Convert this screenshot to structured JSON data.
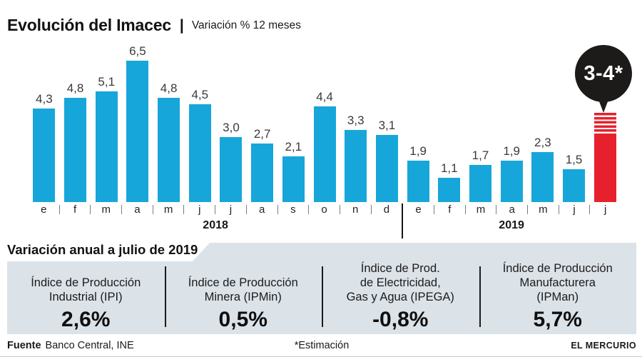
{
  "header": {
    "title": "Evolución del Imacec",
    "separator": "|",
    "subtitle": "Variación % 12 meses"
  },
  "chart_data": {
    "type": "bar",
    "title": "Evolución del Imacec",
    "subtitle": "Variación % 12 meses",
    "ylabel": "Variación % 12 meses",
    "ylim": [
      0,
      7
    ],
    "gridlines": false,
    "bar_color": "#17a6da",
    "estimate_color": "#e6212d",
    "callout": {
      "text": "3-4*",
      "bg": "#1d1b1a",
      "text_color": "#ffffff"
    },
    "year_groups": [
      {
        "label": "2018",
        "count": 12
      },
      {
        "label": "2019",
        "count": 7
      }
    ],
    "points": [
      {
        "month": "e",
        "year": 2018,
        "value": 4.3,
        "label": "4,3"
      },
      {
        "month": "f",
        "year": 2018,
        "value": 4.8,
        "label": "4,8"
      },
      {
        "month": "m",
        "year": 2018,
        "value": 5.1,
        "label": "5,1"
      },
      {
        "month": "a",
        "year": 2018,
        "value": 6.5,
        "label": "6,5"
      },
      {
        "month": "m",
        "year": 2018,
        "value": 4.8,
        "label": "4,8"
      },
      {
        "month": "j",
        "year": 2018,
        "value": 4.5,
        "label": "4,5"
      },
      {
        "month": "j",
        "year": 2018,
        "value": 3.0,
        "label": "3,0"
      },
      {
        "month": "a",
        "year": 2018,
        "value": 2.7,
        "label": "2,7"
      },
      {
        "month": "s",
        "year": 2018,
        "value": 2.1,
        "label": "2,1"
      },
      {
        "month": "o",
        "year": 2018,
        "value": 4.4,
        "label": "4,4"
      },
      {
        "month": "n",
        "year": 2018,
        "value": 3.3,
        "label": "3,3"
      },
      {
        "month": "d",
        "year": 2018,
        "value": 3.1,
        "label": "3,1"
      },
      {
        "month": "e",
        "year": 2019,
        "value": 1.9,
        "label": "1,9"
      },
      {
        "month": "f",
        "year": 2019,
        "value": 1.1,
        "label": "1,1"
      },
      {
        "month": "m",
        "year": 2019,
        "value": 1.7,
        "label": "1,7"
      },
      {
        "month": "a",
        "year": 2019,
        "value": 1.9,
        "label": "1,9"
      },
      {
        "month": "m",
        "year": 2019,
        "value": 2.3,
        "label": "2,3"
      },
      {
        "month": "j",
        "year": 2019,
        "value": 1.5,
        "label": "1,5"
      },
      {
        "month": "j",
        "year": 2019,
        "estimated": true,
        "value_min": 3,
        "value_max": 4,
        "label": "3-4*"
      }
    ]
  },
  "panel": {
    "header": "Variación anual a julio de 2019",
    "items": [
      {
        "title_lines": [
          "Índice de Producción",
          "Industrial (IPI)"
        ],
        "value": "2,6%"
      },
      {
        "title_lines": [
          "Índice de Producción",
          "Minera (IPMin)"
        ],
        "value": "0,5%"
      },
      {
        "title_lines": [
          "Índice de Prod.",
          "de Electricidad,",
          "Gas y Agua (IPEGA)"
        ],
        "value": "-0,8%"
      },
      {
        "title_lines": [
          "Índice de Producción",
          "Manufacturera",
          "(IPMan)"
        ],
        "value": "5,7%"
      }
    ]
  },
  "footer": {
    "source_label": "Fuente",
    "source": "Banco Central, INE",
    "note": "*Estimación",
    "credit": "EL MERCURIO"
  }
}
